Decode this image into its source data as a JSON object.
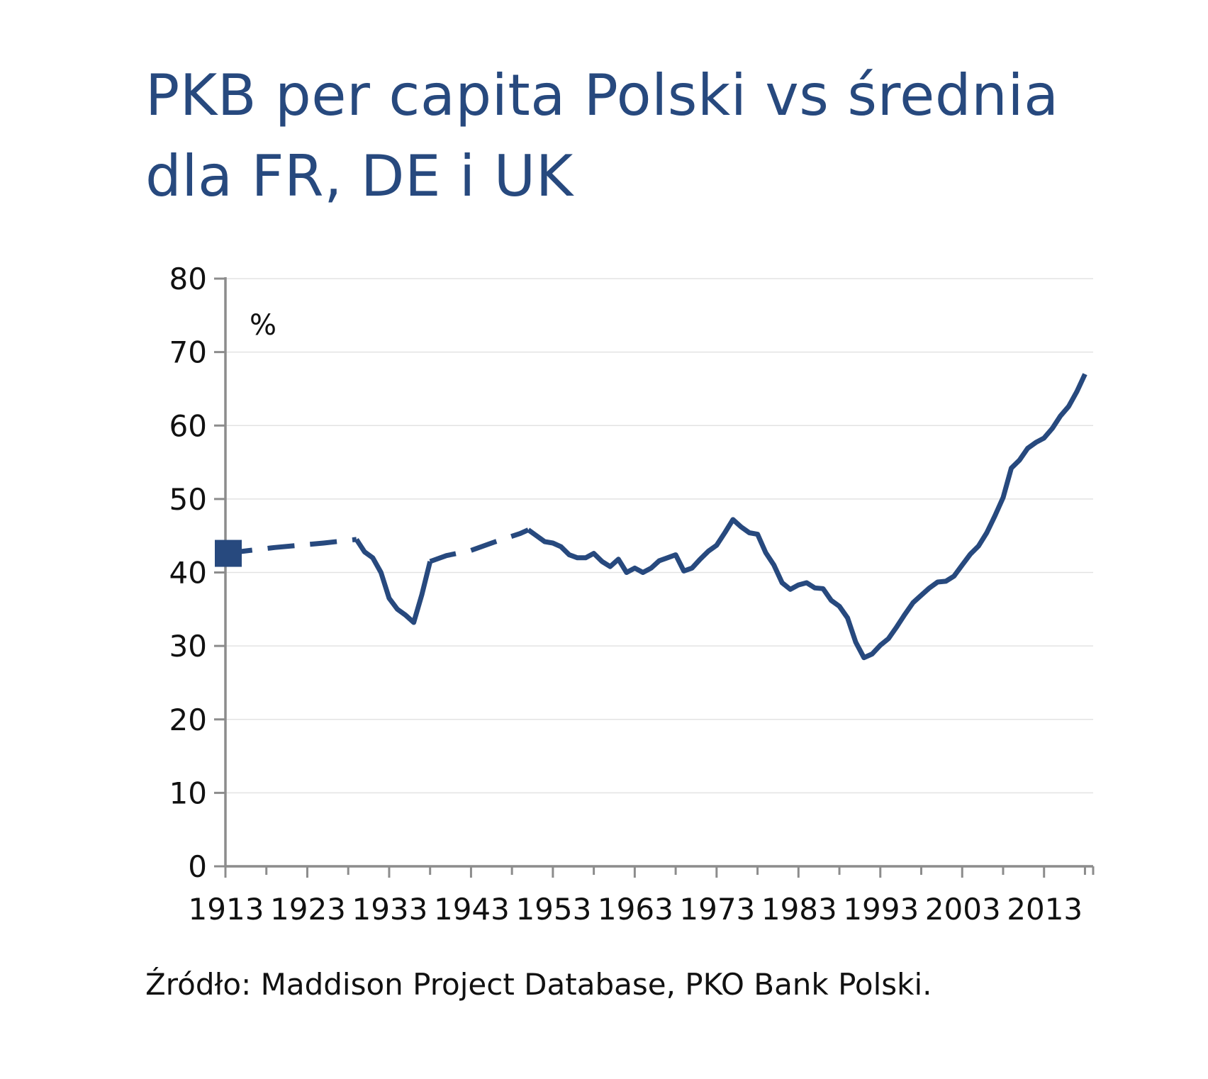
{
  "chart_data": {
    "type": "line",
    "title": "PKB per capita Polski vs średnia dla FR, DE i UK",
    "unit_label": "%",
    "source": "Źródło: Maddison Project Database, PKO Bank Polski.",
    "xlim": [
      1913,
      2019
    ],
    "ylim": [
      0,
      80
    ],
    "y_ticks": [
      "0",
      "10",
      "20",
      "30",
      "40",
      "50",
      "60",
      "70",
      "80"
    ],
    "x_tick_labels": [
      "1913",
      "1923",
      "1933",
      "1943",
      "1953",
      "1963",
      "1973",
      "1983",
      "1993",
      "2003",
      "2013"
    ],
    "grid": true,
    "color": "#27497e",
    "marker_point": [
      1913,
      42.6
    ],
    "series": [
      {
        "style": "dashed",
        "points": [
          [
            1913,
            42.6
          ],
          [
            1916,
            43.0
          ],
          [
            1919,
            43.4
          ],
          [
            1922,
            43.7
          ],
          [
            1925,
            44.0
          ],
          [
            1929,
            44.5
          ]
        ]
      },
      {
        "style": "solid",
        "points": [
          [
            1929,
            44.5
          ],
          [
            1930,
            42.8
          ],
          [
            1931,
            42.0
          ],
          [
            1932,
            40.0
          ],
          [
            1933,
            36.5
          ],
          [
            1934,
            35.0
          ],
          [
            1935,
            34.2
          ],
          [
            1936,
            33.2
          ],
          [
            1937,
            37.0
          ],
          [
            1938,
            41.5
          ]
        ]
      },
      {
        "style": "dashed",
        "points": [
          [
            1938,
            41.5
          ],
          [
            1940,
            42.3
          ],
          [
            1943,
            43.0
          ],
          [
            1946,
            44.2
          ],
          [
            1949,
            45.3
          ],
          [
            1950,
            45.8
          ]
        ]
      },
      {
        "style": "solid",
        "points": [
          [
            1950,
            45.8
          ],
          [
            1951,
            45.0
          ],
          [
            1952,
            44.2
          ],
          [
            1953,
            44.0
          ],
          [
            1954,
            43.5
          ],
          [
            1955,
            42.4
          ],
          [
            1956,
            42.0
          ],
          [
            1957,
            42.0
          ],
          [
            1958,
            42.6
          ],
          [
            1959,
            41.5
          ],
          [
            1960,
            40.8
          ],
          [
            1961,
            41.8
          ],
          [
            1962,
            40.0
          ],
          [
            1963,
            40.6
          ],
          [
            1964,
            40.0
          ],
          [
            1965,
            40.6
          ],
          [
            1966,
            41.6
          ],
          [
            1967,
            42.0
          ],
          [
            1968,
            42.4
          ],
          [
            1969,
            40.2
          ],
          [
            1970,
            40.6
          ],
          [
            1971,
            41.8
          ],
          [
            1972,
            42.9
          ],
          [
            1973,
            43.7
          ],
          [
            1974,
            45.4
          ],
          [
            1975,
            47.2
          ],
          [
            1976,
            46.2
          ],
          [
            1977,
            45.4
          ],
          [
            1978,
            45.2
          ],
          [
            1979,
            42.7
          ],
          [
            1980,
            41.0
          ],
          [
            1981,
            38.6
          ],
          [
            1982,
            37.7
          ],
          [
            1983,
            38.3
          ],
          [
            1984,
            38.6
          ],
          [
            1985,
            37.9
          ],
          [
            1986,
            37.8
          ],
          [
            1987,
            36.2
          ],
          [
            1988,
            35.4
          ],
          [
            1989,
            33.8
          ],
          [
            1990,
            30.5
          ],
          [
            1991,
            28.4
          ],
          [
            1992,
            28.9
          ],
          [
            1993,
            30.1
          ],
          [
            1994,
            31.0
          ],
          [
            1995,
            32.6
          ],
          [
            1996,
            34.3
          ],
          [
            1997,
            35.9
          ],
          [
            1998,
            36.9
          ],
          [
            1999,
            37.9
          ],
          [
            2000,
            38.7
          ],
          [
            2001,
            38.8
          ],
          [
            2002,
            39.5
          ],
          [
            2003,
            41.0
          ],
          [
            2004,
            42.5
          ],
          [
            2005,
            43.6
          ],
          [
            2006,
            45.4
          ],
          [
            2007,
            47.7
          ],
          [
            2008,
            50.2
          ],
          [
            2009,
            54.2
          ],
          [
            2010,
            55.3
          ],
          [
            2011,
            56.9
          ],
          [
            2012,
            57.7
          ],
          [
            2013,
            58.3
          ],
          [
            2014,
            59.6
          ],
          [
            2015,
            61.3
          ],
          [
            2016,
            62.6
          ],
          [
            2017,
            64.6
          ],
          [
            2018,
            67.0
          ]
        ]
      }
    ]
  }
}
